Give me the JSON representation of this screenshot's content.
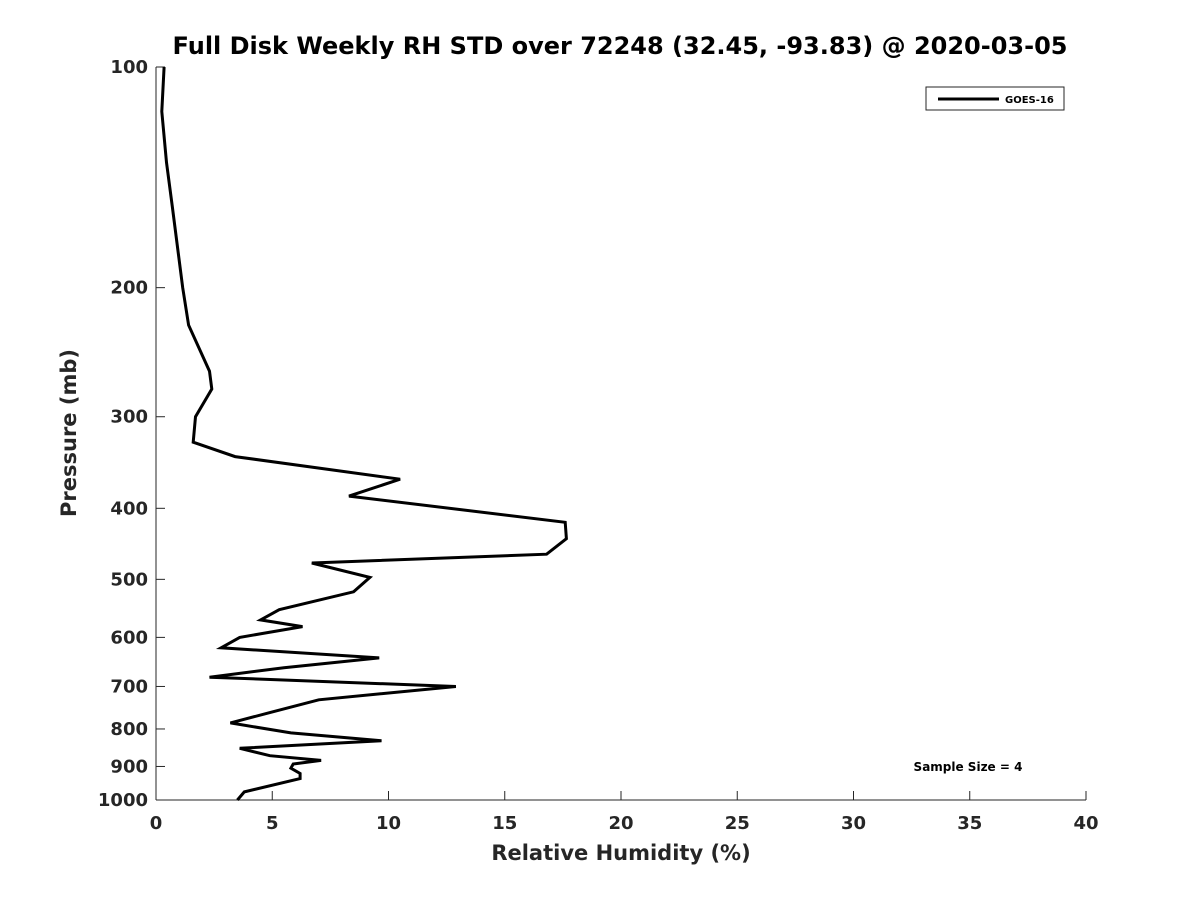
{
  "chart_data": {
    "type": "line",
    "title": "Full Disk Weekly RH STD over 72248 (32.45, -93.83) @ 2020-03-05",
    "xlabel": "Relative Humidity (%)",
    "ylabel": "Pressure (mb)",
    "xlim": [
      0,
      40
    ],
    "ylim": [
      100,
      1000
    ],
    "y_scale": "log",
    "y_reversed": true,
    "x_ticks": [
      0,
      5,
      10,
      15,
      20,
      25,
      30,
      35,
      40
    ],
    "y_ticks": [
      100,
      200,
      300,
      400,
      500,
      600,
      700,
      800,
      900,
      1000
    ],
    "grid": false,
    "legend_position": "top-right",
    "series": [
      {
        "name": "GOES-16",
        "color": "#000000",
        "x": [
          0.35,
          0.25,
          0.45,
          0.7,
          1.15,
          1.4,
          2.3,
          2.4,
          1.7,
          1.6,
          3.4,
          10.5,
          8.3,
          17.6,
          17.65,
          16.8,
          6.7,
          9.2,
          8.5,
          5.3,
          4.5,
          6.3,
          3.6,
          2.8,
          9.6,
          5.5,
          2.3,
          12.9,
          7.0,
          4.9,
          3.2,
          5.8,
          9.7,
          3.6,
          4.9,
          7.1,
          5.9,
          5.8,
          6.2,
          6.2,
          3.8,
          3.5
        ],
        "y": [
          100,
          115,
          135,
          155,
          200,
          225,
          260,
          275,
          300,
          325,
          340,
          365,
          385,
          418,
          440,
          462,
          475,
          497,
          520,
          550,
          568,
          580,
          600,
          620,
          640,
          660,
          680,
          700,
          730,
          760,
          785,
          810,
          830,
          850,
          870,
          883,
          893,
          905,
          920,
          935,
          975,
          1000
        ]
      }
    ],
    "annotations": [
      {
        "text": "Sample Size = 4"
      }
    ]
  }
}
